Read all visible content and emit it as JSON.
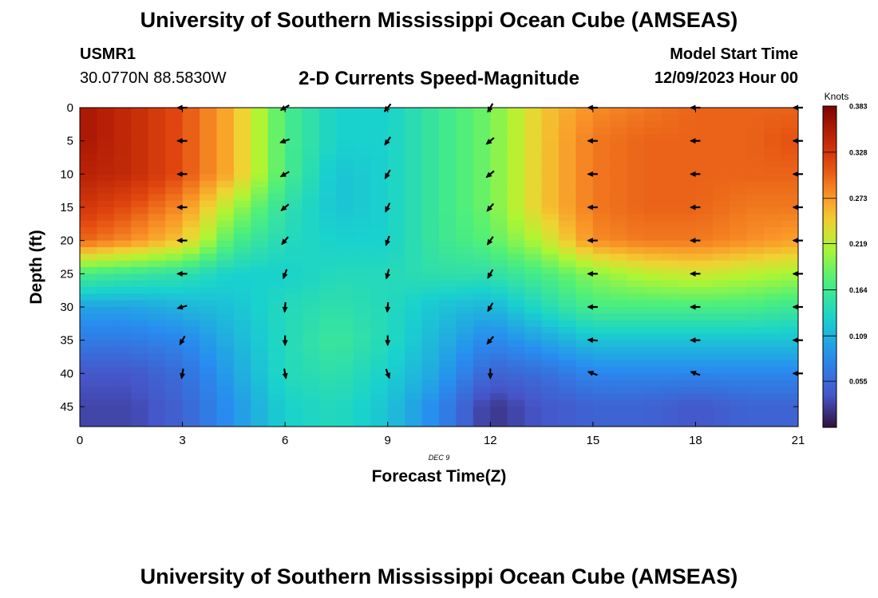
{
  "header": {
    "title": "University of Southern Mississippi Ocean Cube (AMSEAS)",
    "station_id": "USMR1",
    "station_coords": "30.0770N  88.5830W",
    "plot_title": "2-D Currents Speed-Magnitude",
    "model_start_label": "Model Start Time",
    "model_start_value": "12/09/2023 Hour 00"
  },
  "footer": {
    "title": "University of Southern Mississippi Ocean Cube (AMSEAS)"
  },
  "chart_data": {
    "type": "heatmap",
    "xlabel": "Forecast Time(Z)",
    "ylabel": "Depth (ft)",
    "x_date_label": "DEC 9",
    "xlim": [
      0,
      21
    ],
    "ylim": [
      48,
      0
    ],
    "x_ticks": [
      0,
      3,
      6,
      9,
      12,
      15,
      18,
      21
    ],
    "y_ticks": [
      0,
      5,
      10,
      15,
      20,
      25,
      30,
      35,
      40,
      45
    ],
    "colorbar": {
      "label": "Knots",
      "ticks": [
        0.383,
        0.328,
        0.273,
        0.219,
        0.164,
        0.109,
        0.055
      ],
      "range": [
        0.0,
        0.383
      ]
    },
    "arrow_times": [
      3,
      6,
      9,
      12,
      15,
      18,
      21
    ],
    "arrow_depths": [
      0,
      5,
      10,
      15,
      20,
      25,
      30,
      35,
      40
    ],
    "arrow_directions_deg": [
      [
        270,
        270,
        270,
        270,
        270,
        270,
        255,
        210,
        190
      ],
      [
        240,
        250,
        240,
        230,
        220,
        200,
        185,
        180,
        170
      ],
      [
        220,
        215,
        210,
        205,
        200,
        195,
        185,
        180,
        160
      ],
      [
        210,
        230,
        230,
        220,
        215,
        210,
        210,
        220,
        180
      ],
      [
        270,
        270,
        270,
        270,
        270,
        270,
        270,
        275,
        290
      ],
      [
        270,
        270,
        270,
        270,
        270,
        270,
        270,
        270,
        290
      ],
      [
        270,
        270,
        270,
        270,
        270,
        270,
        270,
        270,
        270
      ]
    ],
    "times": [
      0,
      1.5,
      3,
      4.5,
      6,
      7.5,
      9,
      10.5,
      12,
      13.5,
      15,
      16.5,
      18,
      19.5,
      21
    ],
    "depths": [
      0,
      5,
      10,
      15,
      20,
      25,
      30,
      35,
      40,
      45
    ],
    "speed_knots": [
      [
        0.36,
        0.34,
        0.31,
        0.26,
        0.17,
        0.13,
        0.13,
        0.16,
        0.19,
        0.25,
        0.28,
        0.29,
        0.3,
        0.3,
        0.3
      ],
      [
        0.36,
        0.34,
        0.31,
        0.26,
        0.17,
        0.13,
        0.13,
        0.16,
        0.19,
        0.25,
        0.29,
        0.3,
        0.3,
        0.3,
        0.31
      ],
      [
        0.35,
        0.34,
        0.31,
        0.26,
        0.17,
        0.12,
        0.13,
        0.16,
        0.19,
        0.25,
        0.29,
        0.3,
        0.3,
        0.3,
        0.3
      ],
      [
        0.33,
        0.31,
        0.28,
        0.21,
        0.15,
        0.12,
        0.13,
        0.16,
        0.19,
        0.25,
        0.29,
        0.3,
        0.3,
        0.29,
        0.29
      ],
      [
        0.3,
        0.28,
        0.25,
        0.17,
        0.14,
        0.13,
        0.13,
        0.16,
        0.18,
        0.22,
        0.28,
        0.29,
        0.29,
        0.28,
        0.27
      ],
      [
        0.17,
        0.16,
        0.15,
        0.13,
        0.13,
        0.14,
        0.14,
        0.15,
        0.15,
        0.17,
        0.2,
        0.22,
        0.23,
        0.22,
        0.21
      ],
      [
        0.1,
        0.1,
        0.11,
        0.12,
        0.14,
        0.15,
        0.14,
        0.12,
        0.11,
        0.14,
        0.17,
        0.17,
        0.17,
        0.17,
        0.16
      ],
      [
        0.07,
        0.07,
        0.08,
        0.11,
        0.14,
        0.16,
        0.14,
        0.11,
        0.08,
        0.1,
        0.12,
        0.12,
        0.12,
        0.12,
        0.12
      ],
      [
        0.04,
        0.04,
        0.06,
        0.1,
        0.14,
        0.15,
        0.13,
        0.1,
        0.05,
        0.06,
        0.08,
        0.08,
        0.08,
        0.08,
        0.08
      ],
      [
        0.03,
        0.03,
        0.05,
        0.09,
        0.13,
        0.14,
        0.12,
        0.08,
        0.02,
        0.04,
        0.05,
        0.05,
        0.04,
        0.05,
        0.05
      ]
    ]
  }
}
